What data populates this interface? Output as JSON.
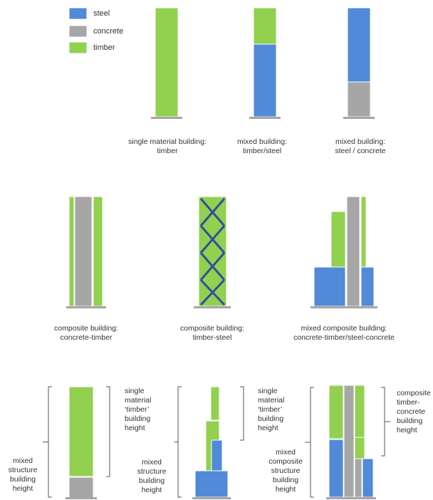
{
  "colors": {
    "steel": "#508ad8",
    "concrete": "#a6a6a6",
    "timber": "#92d050",
    "brace": "#2f4f9a",
    "bracket": "#555555",
    "base": "#a6a6a6"
  },
  "legend": [
    {
      "key": "steel",
      "label": "steel"
    },
    {
      "key": "concrete",
      "label": "concrete"
    },
    {
      "key": "timber",
      "label": "timber"
    }
  ],
  "captions": {
    "timber_only": [
      "single material building:",
      "timber"
    ],
    "timber_steel": [
      "mixed building:",
      "timber/steel"
    ],
    "steel_concrete": [
      "mixed building:",
      "steel / concrete"
    ],
    "composite_concrete_timber": [
      "composite building:",
      "concrete-timber"
    ],
    "composite_timber_steel": [
      "composite building:",
      "timber-steel"
    ],
    "mixed_composite": [
      "mixed composite building:",
      "concrete-timber/steel-concrete"
    ]
  },
  "height_labels": {
    "a_single_timber": [
      "single",
      "material",
      "‘timber’",
      "building",
      "height"
    ],
    "a_mixed_structure": [
      "mixed",
      "structure",
      "building",
      "height"
    ],
    "b_single_timber": [
      "single",
      "material",
      "‘timber’",
      "building",
      "height"
    ],
    "b_mixed_structure": [
      "mixed",
      "structure",
      "building",
      "height"
    ],
    "c_composite": [
      "composite",
      "timber-",
      "concrete",
      "building",
      "height"
    ],
    "c_mixed_composite": [
      "mixed",
      "composite",
      "structure",
      "building",
      "height"
    ]
  }
}
